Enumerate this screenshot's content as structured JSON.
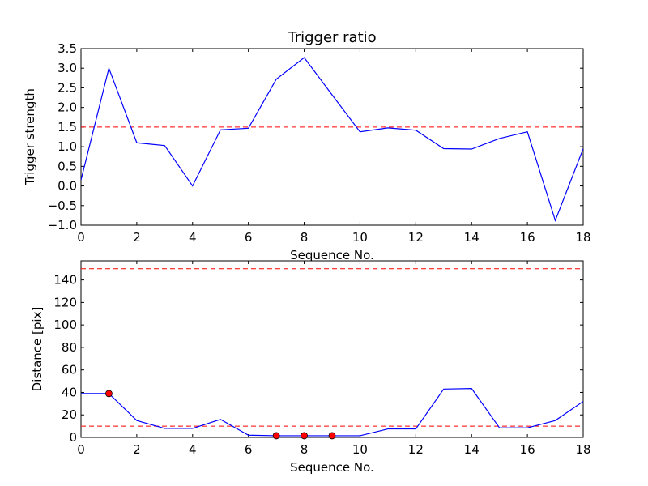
{
  "chart_data": [
    {
      "type": "line",
      "title": "Trigger ratio",
      "xlabel": "Sequence No.",
      "ylabel": "Trigger strength",
      "xlim": [
        0,
        18
      ],
      "ylim": [
        -1.0,
        3.5
      ],
      "xticks": [
        0,
        2,
        4,
        6,
        8,
        10,
        12,
        14,
        16,
        18
      ],
      "yticks": [
        -1.0,
        -0.5,
        0.0,
        0.5,
        1.0,
        1.5,
        2.0,
        2.5,
        3.0,
        3.5
      ],
      "ytick_labels": [
        "−1.0",
        "−0.5",
        "0.0",
        "0.5",
        "1.0",
        "1.5",
        "2.0",
        "2.5",
        "3.0",
        "3.5"
      ],
      "grid": false,
      "series": [
        {
          "x": [
            0,
            1,
            2,
            3,
            4,
            5,
            6,
            7,
            8,
            9,
            10,
            11,
            12,
            13,
            14,
            15,
            16,
            17,
            18
          ],
          "values": [
            0.15,
            3.0,
            1.1,
            1.03,
            0.0,
            1.43,
            1.47,
            2.72,
            3.27,
            2.32,
            1.38,
            1.48,
            1.42,
            0.95,
            0.94,
            1.21,
            1.38,
            -0.88,
            0.95
          ],
          "color": "#0000ff"
        }
      ],
      "hlines": [
        {
          "y": 1.5,
          "color": "#ff0000",
          "style": "dashed"
        }
      ]
    },
    {
      "type": "line",
      "title": "",
      "xlabel": "Sequence No.",
      "ylabel": "Distance [pix]",
      "xlim": [
        0,
        18
      ],
      "ylim": [
        0,
        157
      ],
      "xticks": [
        0,
        2,
        4,
        6,
        8,
        10,
        12,
        14,
        16,
        18
      ],
      "yticks": [
        0,
        20,
        40,
        60,
        80,
        100,
        120,
        140
      ],
      "grid": false,
      "series": [
        {
          "x": [
            0,
            1,
            2,
            3,
            4,
            5,
            6,
            7,
            8,
            9,
            10,
            11,
            12,
            13,
            14,
            15,
            16,
            17,
            18
          ],
          "values": [
            39,
            39,
            15,
            8,
            8,
            16,
            2,
            1.5,
            1.5,
            1.5,
            1.5,
            7.5,
            7.5,
            43,
            43.5,
            8.5,
            8.5,
            15,
            32
          ],
          "color": "#0000ff"
        }
      ],
      "markers": {
        "x": [
          1,
          7,
          8,
          9
        ],
        "values": [
          39,
          1.5,
          1.5,
          1.5
        ],
        "color": "#ff0000"
      },
      "hlines": [
        {
          "y": 150,
          "color": "#ff0000",
          "style": "dashed"
        },
        {
          "y": 10,
          "color": "#ff0000",
          "style": "dashed"
        }
      ]
    }
  ]
}
